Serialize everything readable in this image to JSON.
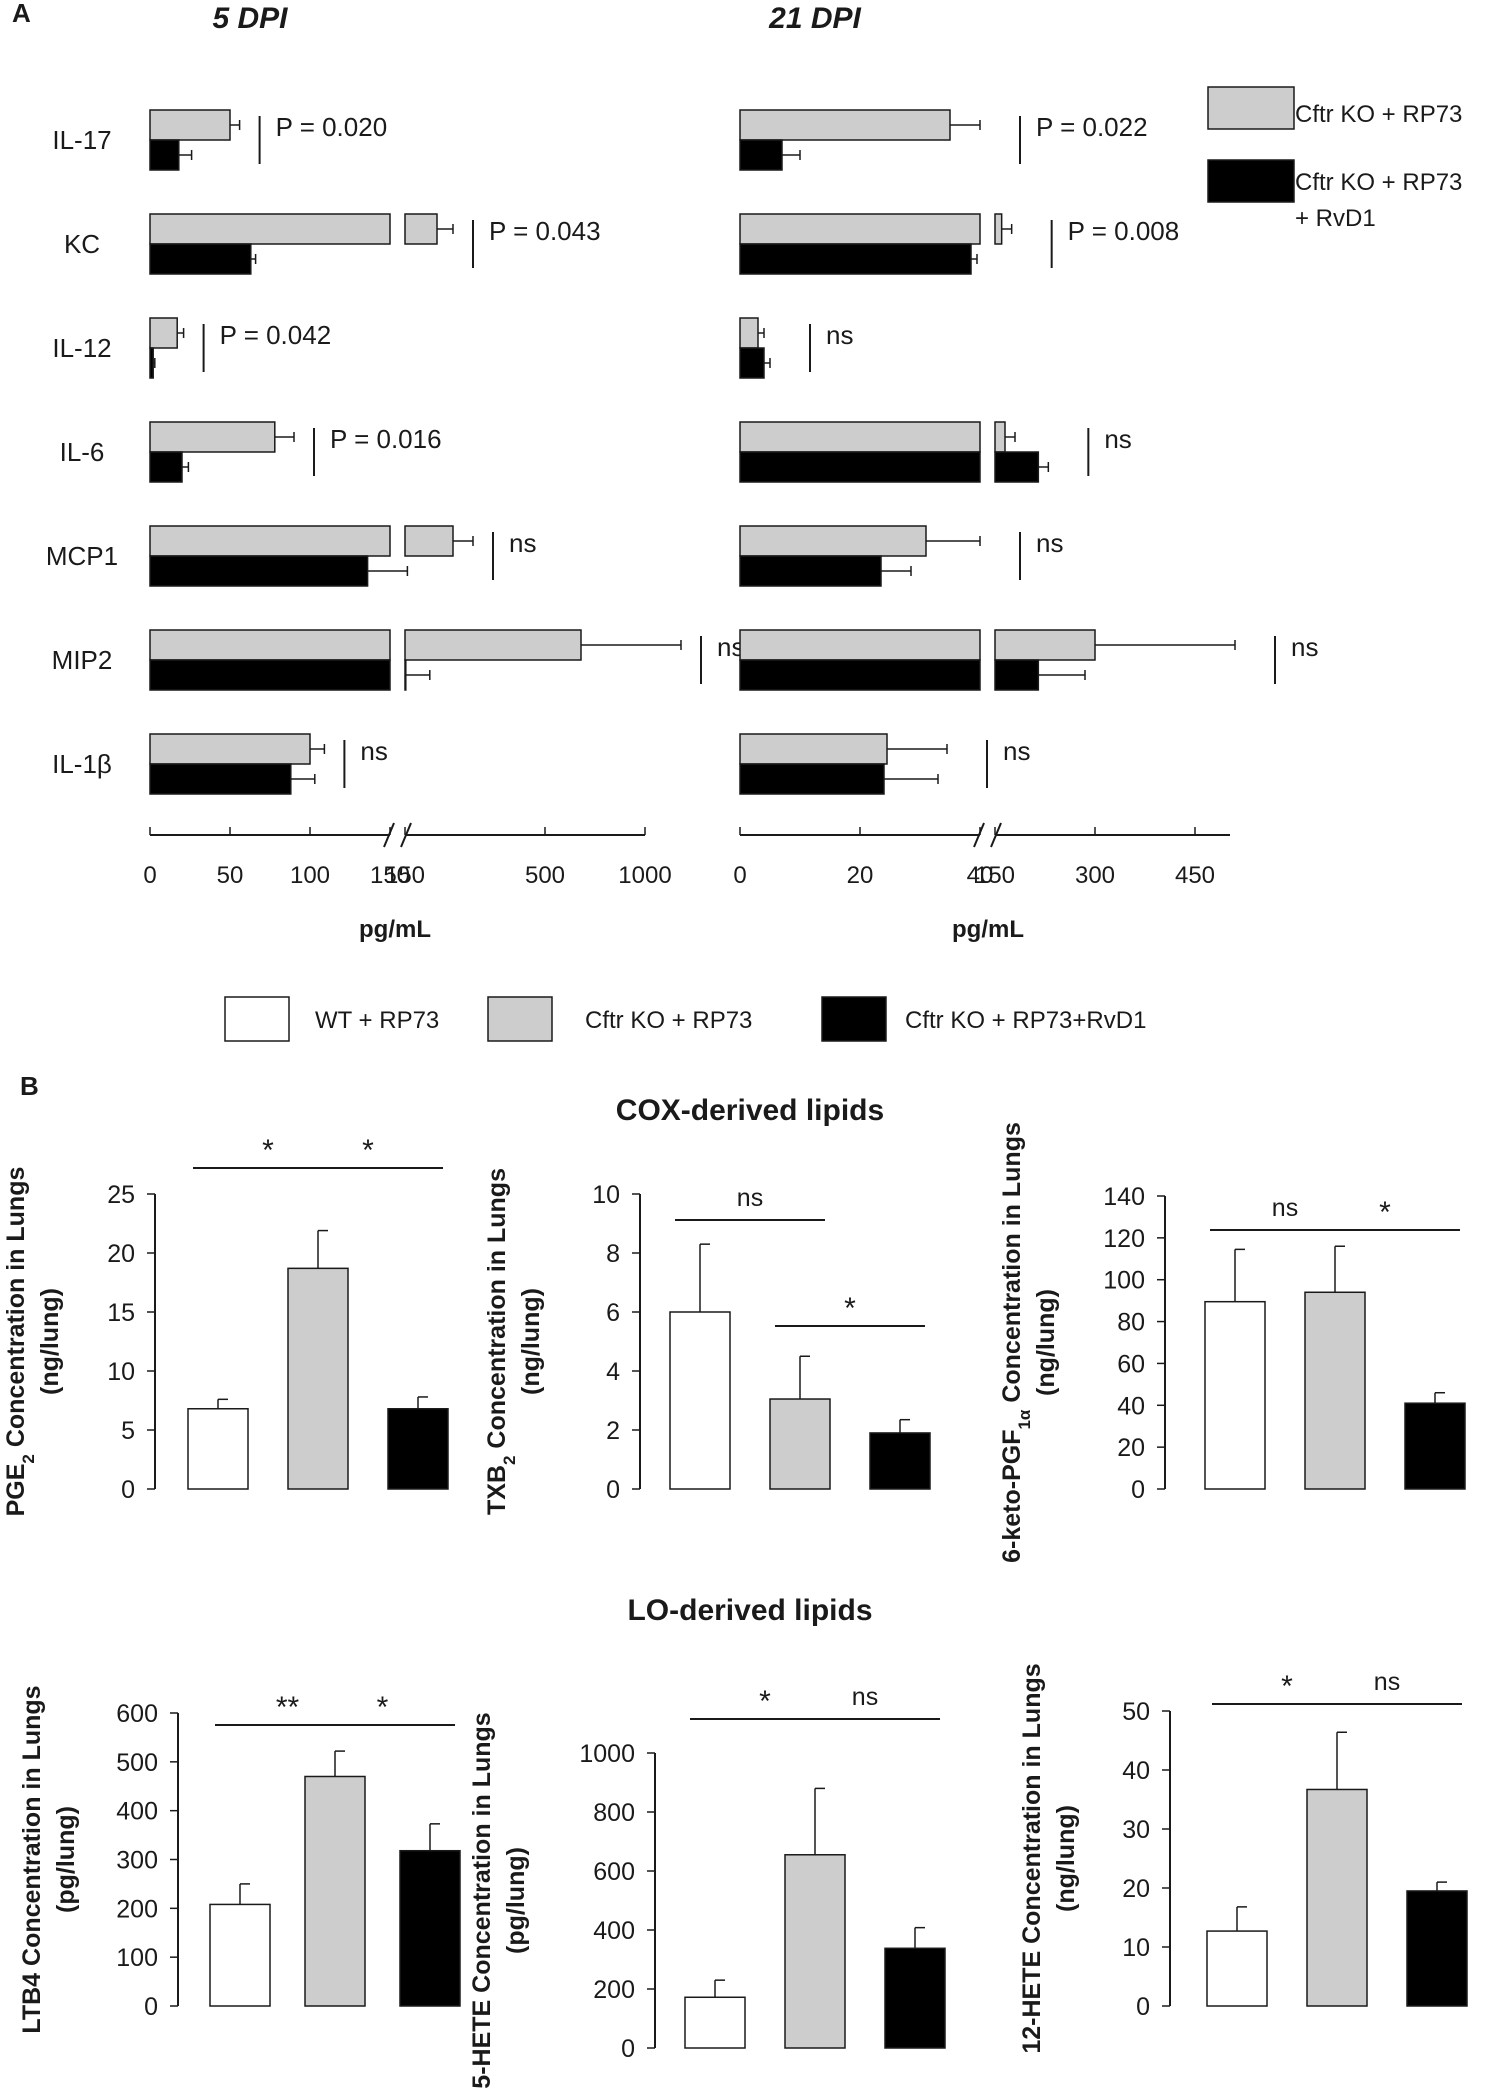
{
  "panel_a_label": "A",
  "panel_b_label": "B",
  "colors": {
    "grey": "#cdcdcd",
    "black": "#000000",
    "white": "#ffffff",
    "stroke": "#1a1a1a"
  },
  "legend_a": [
    {
      "label": "Cftr KO + RP73",
      "color": "grey"
    },
    {
      "label": "Cftr KO + RP73",
      "label2": "+ RvD1",
      "color": "black"
    }
  ],
  "legend_b": [
    {
      "label": "WT + RP73",
      "color": "white"
    },
    {
      "label": "Cftr KO + RP73",
      "color": "grey"
    },
    {
      "label": "Cftr KO + RP73+RvD1",
      "color": "black"
    }
  ],
  "section_titles": {
    "cox": "COX-derived lipids",
    "lo": "LO-derived lipids"
  },
  "chart_data": [
    {
      "id": "a5",
      "type": "bar",
      "orientation": "horizontal",
      "title": "5 DPI",
      "xlabel": "pg/mL",
      "axis_break": "between 150 and 150",
      "x_ticks": [
        "0",
        "50",
        "100",
        "150",
        "150",
        "500",
        "1000"
      ],
      "categories": [
        "IL-17",
        "KC",
        "IL-12",
        "IL-6",
        "MCP1",
        "MIP2",
        "IL-1β"
      ],
      "p_values": [
        "P = 0.020",
        "P = 0.043",
        "P = 0.042",
        "P = 0.016",
        "ns",
        "ns",
        "ns"
      ],
      "series": [
        {
          "name": "Cftr KO + RP73",
          "values": [
            50,
            230,
            17,
            78,
            270,
            680,
            100
          ],
          "errors": [
            6,
            40,
            4,
            12,
            50,
            500,
            9
          ]
        },
        {
          "name": "Cftr KO + RP73 + RvD1",
          "values": [
            18,
            63,
            2,
            20,
            136,
            152,
            88
          ],
          "errors": [
            8,
            3,
            1,
            4,
            20,
            60,
            15
          ]
        }
      ]
    },
    {
      "id": "a21",
      "type": "bar",
      "orientation": "horizontal",
      "title": "21 DPI",
      "xlabel": "pg/mL",
      "axis_break": "between 40 and 150",
      "x_ticks": [
        "0",
        "20",
        "40",
        "150",
        "300",
        "450"
      ],
      "categories": [
        "IL-17",
        "KC",
        "IL-12",
        "IL-6",
        "MCP1",
        "MIP2",
        "IL-1β"
      ],
      "p_values": [
        "P = 0.022",
        "P = 0.008",
        "ns",
        "ns",
        "ns",
        "ns",
        "ns"
      ],
      "series": [
        {
          "name": "Cftr KO + RP73",
          "values": [
            35,
            160,
            3,
            165,
            31,
            300,
            24.5
          ],
          "errors": [
            5,
            15,
            1,
            15,
            9,
            210,
            10
          ]
        },
        {
          "name": "Cftr KO + RP73 + RvD1",
          "values": [
            7,
            38.5,
            4,
            215,
            23.5,
            215,
            24
          ],
          "errors": [
            3,
            1,
            1,
            15,
            5,
            70,
            9
          ]
        }
      ]
    },
    {
      "id": "pge2",
      "type": "bar",
      "group": "COX-derived lipids",
      "ylabel": "PGE2 Concentration in Lungs",
      "ylabel_sub": "2",
      "yunit": "(ng/lung)",
      "ylim": [
        0,
        25
      ],
      "yticks": [
        0,
        5,
        10,
        15,
        20,
        25
      ],
      "categories": [
        "WT + RP73",
        "Cftr KO + RP73",
        "Cftr KO + RP73+RvD1"
      ],
      "values": [
        6.8,
        18.7,
        6.8
      ],
      "errors": [
        0.8,
        3.2,
        1.0
      ],
      "comparisons": [
        {
          "label": "*",
          "from": 0,
          "to": 1
        },
        {
          "label": "*",
          "from": 1,
          "to": 2
        }
      ]
    },
    {
      "id": "txb2",
      "type": "bar",
      "group": "COX-derived lipids",
      "ylabel": "TXB2 Concentration in Lungs",
      "ylabel_sub": "2",
      "yunit": "(ng/lung)",
      "ylim": [
        0,
        10
      ],
      "yticks": [
        0,
        2,
        4,
        6,
        8,
        10
      ],
      "categories": [
        "WT + RP73",
        "Cftr KO + RP73",
        "Cftr KO + RP73+RvD1"
      ],
      "values": [
        6.0,
        3.05,
        1.9
      ],
      "errors": [
        2.3,
        1.45,
        0.45
      ],
      "comparisons": [
        {
          "label": "ns",
          "from": 0,
          "to": 1
        },
        {
          "label": "*",
          "from": 1,
          "to": 2
        }
      ]
    },
    {
      "id": "keto",
      "type": "bar",
      "group": "COX-derived lipids",
      "ylabel": "6-keto-PGF1α  Concentration in Lungs",
      "ylabel_sub": "1α",
      "yunit": "(ng/lung)",
      "ylim": [
        0,
        140
      ],
      "yticks": [
        0,
        20,
        40,
        60,
        80,
        100,
        120,
        140
      ],
      "categories": [
        "WT + RP73",
        "Cftr KO + RP73",
        "Cftr KO + RP73+RvD1"
      ],
      "values": [
        89.5,
        94,
        41
      ],
      "errors": [
        25,
        22,
        5
      ],
      "comparisons": [
        {
          "label": "ns",
          "from": 0,
          "to": 1
        },
        {
          "label": "*",
          "from": 1,
          "to": 2
        }
      ]
    },
    {
      "id": "ltb4",
      "type": "bar",
      "group": "LO-derived lipids",
      "ylabel": "LTB4 Concentration in Lungs",
      "yunit": "(pg/lung)",
      "ylim": [
        0,
        600
      ],
      "yticks": [
        0,
        100,
        200,
        300,
        400,
        500,
        600
      ],
      "categories": [
        "WT + RP73",
        "Cftr KO + RP73",
        "Cftr KO + RP73+RvD1"
      ],
      "values": [
        208,
        470,
        318
      ],
      "errors": [
        42,
        52,
        55
      ],
      "comparisons": [
        {
          "label": "**",
          "from": 0,
          "to": 1
        },
        {
          "label": "*",
          "from": 1,
          "to": 2
        }
      ]
    },
    {
      "id": "hete5",
      "type": "bar",
      "group": "LO-derived lipids",
      "ylabel": "5-HETE Concentration in Lungs",
      "yunit": "(pg/lung)",
      "ylim": [
        0,
        1000
      ],
      "yticks": [
        0,
        200,
        400,
        600,
        800,
        1000
      ],
      "categories": [
        "WT + RP73",
        "Cftr KO + RP73",
        "Cftr KO + RP73+RvD1"
      ],
      "values": [
        172,
        655,
        338
      ],
      "errors": [
        58,
        225,
        70
      ],
      "comparisons": [
        {
          "label": "*",
          "from": 0,
          "to": 1
        },
        {
          "label": "ns",
          "from": 1,
          "to": 2
        }
      ]
    },
    {
      "id": "hete12",
      "type": "bar",
      "group": "LO-derived lipids",
      "ylabel": "12-HETE Concentration in Lungs",
      "yunit": "(ng/lung)",
      "ylim": [
        0,
        50
      ],
      "yticks": [
        0,
        10,
        20,
        30,
        40,
        50
      ],
      "categories": [
        "WT + RP73",
        "Cftr KO + RP73",
        "Cftr KO + RP73+RvD1"
      ],
      "values": [
        12.7,
        36.7,
        19.5
      ],
      "errors": [
        4.1,
        9.7,
        1.5
      ],
      "comparisons": [
        {
          "label": "*",
          "from": 0,
          "to": 1
        },
        {
          "label": "ns",
          "from": 1,
          "to": 2
        }
      ]
    }
  ]
}
